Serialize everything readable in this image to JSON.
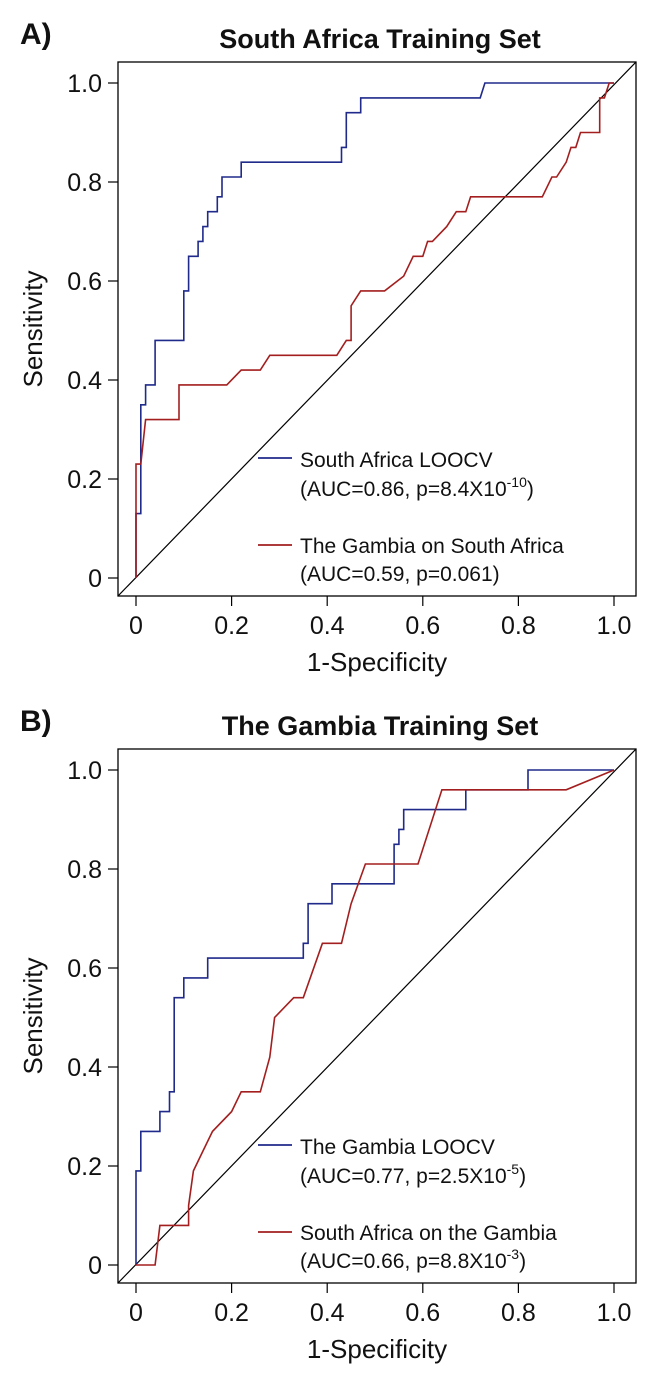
{
  "panels": [
    {
      "letter": "A)",
      "legend": [
        {
          "label": "South Africa LOOCV",
          "stat_prefix": "(AUC=0.86, p=8.4X10",
          "stat_exp": "-10",
          "stat_suffix": ")"
        },
        {
          "label": "The Gambia on South Africa",
          "stat_prefix": "(AUC=0.59, p=0.061)",
          "stat_exp": "",
          "stat_suffix": ""
        }
      ]
    },
    {
      "letter": "B)",
      "legend": [
        {
          "label": "The Gambia LOOCV",
          "stat_prefix": "(AUC=0.77, p=2.5X10",
          "stat_exp": "-5",
          "stat_suffix": ")"
        },
        {
          "label": "South Africa on the Gambia",
          "stat_prefix": "(AUC=0.66, p=8.8X10",
          "stat_exp": "-3",
          "stat_suffix": ")"
        }
      ]
    }
  ],
  "colors": {
    "blue": "#1f2a8a",
    "red": "#a31f1f",
    "diagonal": "#000000",
    "frame": "#000000"
  },
  "chart_data": [
    {
      "type": "line",
      "title": "South Africa Training Set",
      "xlabel": "1-Specificity",
      "ylabel": "Sensitivity",
      "xlim": [
        0,
        1
      ],
      "ylim": [
        0,
        1
      ],
      "x_ticks": [
        "0",
        "0.2",
        "0.4",
        "0.6",
        "0.8",
        "1.0"
      ],
      "y_ticks": [
        "0",
        "0.2",
        "0.4",
        "0.6",
        "0.8",
        "1.0"
      ],
      "diagonal": true,
      "legend_position": "bottom-right",
      "series": [
        {
          "name": "South Africa LOOCV",
          "color": "#1f2a8a",
          "points": [
            [
              0,
              0
            ],
            [
              0,
              0.13
            ],
            [
              0.01,
              0.13
            ],
            [
              0.01,
              0.35
            ],
            [
              0.02,
              0.35
            ],
            [
              0.02,
              0.39
            ],
            [
              0.04,
              0.39
            ],
            [
              0.04,
              0.48
            ],
            [
              0.1,
              0.48
            ],
            [
              0.1,
              0.58
            ],
            [
              0.11,
              0.58
            ],
            [
              0.11,
              0.65
            ],
            [
              0.13,
              0.65
            ],
            [
              0.13,
              0.68
            ],
            [
              0.14,
              0.68
            ],
            [
              0.14,
              0.71
            ],
            [
              0.15,
              0.71
            ],
            [
              0.15,
              0.74
            ],
            [
              0.17,
              0.74
            ],
            [
              0.17,
              0.77
            ],
            [
              0.18,
              0.77
            ],
            [
              0.18,
              0.81
            ],
            [
              0.22,
              0.81
            ],
            [
              0.22,
              0.84
            ],
            [
              0.43,
              0.84
            ],
            [
              0.43,
              0.87
            ],
            [
              0.44,
              0.87
            ],
            [
              0.44,
              0.94
            ],
            [
              0.47,
              0.94
            ],
            [
              0.47,
              0.97
            ],
            [
              0.72,
              0.97
            ],
            [
              0.73,
              1.0
            ],
            [
              1.0,
              1.0
            ]
          ]
        },
        {
          "name": "The Gambia on South Africa",
          "color": "#a31f1f",
          "points": [
            [
              0,
              0
            ],
            [
              0,
              0.23
            ],
            [
              0.01,
              0.23
            ],
            [
              0.02,
              0.32
            ],
            [
              0.09,
              0.32
            ],
            [
              0.09,
              0.39
            ],
            [
              0.19,
              0.39
            ],
            [
              0.22,
              0.42
            ],
            [
              0.26,
              0.42
            ],
            [
              0.28,
              0.45
            ],
            [
              0.42,
              0.45
            ],
            [
              0.44,
              0.48
            ],
            [
              0.45,
              0.48
            ],
            [
              0.45,
              0.55
            ],
            [
              0.47,
              0.58
            ],
            [
              0.52,
              0.58
            ],
            [
              0.56,
              0.61
            ],
            [
              0.58,
              0.65
            ],
            [
              0.6,
              0.65
            ],
            [
              0.61,
              0.68
            ],
            [
              0.62,
              0.68
            ],
            [
              0.65,
              0.71
            ],
            [
              0.67,
              0.74
            ],
            [
              0.69,
              0.74
            ],
            [
              0.7,
              0.77
            ],
            [
              0.85,
              0.77
            ],
            [
              0.87,
              0.81
            ],
            [
              0.88,
              0.81
            ],
            [
              0.9,
              0.84
            ],
            [
              0.91,
              0.87
            ],
            [
              0.92,
              0.87
            ],
            [
              0.93,
              0.9
            ],
            [
              0.97,
              0.9
            ],
            [
              0.97,
              0.97
            ],
            [
              0.98,
              0.97
            ],
            [
              0.99,
              1.0
            ],
            [
              1.0,
              1.0
            ]
          ]
        }
      ]
    },
    {
      "type": "line",
      "title": "The Gambia Training Set",
      "xlabel": "1-Specificity",
      "ylabel": "Sensitivity",
      "xlim": [
        0,
        1
      ],
      "ylim": [
        0,
        1
      ],
      "x_ticks": [
        "0",
        "0.2",
        "0.4",
        "0.6",
        "0.8",
        "1.0"
      ],
      "y_ticks": [
        "0",
        "0.2",
        "0.4",
        "0.6",
        "0.8",
        "1.0"
      ],
      "diagonal": true,
      "legend_position": "bottom-right",
      "series": [
        {
          "name": "The Gambia LOOCV",
          "color": "#1f2a8a",
          "points": [
            [
              0,
              0
            ],
            [
              0,
              0.19
            ],
            [
              0.01,
              0.19
            ],
            [
              0.01,
              0.27
            ],
            [
              0.05,
              0.27
            ],
            [
              0.05,
              0.31
            ],
            [
              0.07,
              0.31
            ],
            [
              0.07,
              0.35
            ],
            [
              0.08,
              0.35
            ],
            [
              0.08,
              0.54
            ],
            [
              0.1,
              0.54
            ],
            [
              0.1,
              0.58
            ],
            [
              0.15,
              0.58
            ],
            [
              0.15,
              0.62
            ],
            [
              0.35,
              0.62
            ],
            [
              0.35,
              0.65
            ],
            [
              0.36,
              0.65
            ],
            [
              0.36,
              0.73
            ],
            [
              0.41,
              0.73
            ],
            [
              0.41,
              0.77
            ],
            [
              0.54,
              0.77
            ],
            [
              0.54,
              0.85
            ],
            [
              0.55,
              0.85
            ],
            [
              0.55,
              0.88
            ],
            [
              0.56,
              0.88
            ],
            [
              0.56,
              0.92
            ],
            [
              0.69,
              0.92
            ],
            [
              0.69,
              0.96
            ],
            [
              0.82,
              0.96
            ],
            [
              0.82,
              1.0
            ],
            [
              1.0,
              1.0
            ]
          ]
        },
        {
          "name": "South Africa on the Gambia",
          "color": "#a31f1f",
          "points": [
            [
              0,
              0
            ],
            [
              0.04,
              0
            ],
            [
              0.05,
              0.08
            ],
            [
              0.11,
              0.08
            ],
            [
              0.11,
              0.12
            ],
            [
              0.12,
              0.19
            ],
            [
              0.14,
              0.23
            ],
            [
              0.16,
              0.27
            ],
            [
              0.2,
              0.31
            ],
            [
              0.22,
              0.35
            ],
            [
              0.26,
              0.35
            ],
            [
              0.28,
              0.42
            ],
            [
              0.29,
              0.5
            ],
            [
              0.33,
              0.54
            ],
            [
              0.35,
              0.54
            ],
            [
              0.39,
              0.65
            ],
            [
              0.43,
              0.65
            ],
            [
              0.45,
              0.73
            ],
            [
              0.48,
              0.81
            ],
            [
              0.59,
              0.81
            ],
            [
              0.64,
              0.96
            ],
            [
              0.9,
              0.96
            ],
            [
              1.0,
              1.0
            ]
          ]
        }
      ]
    }
  ]
}
